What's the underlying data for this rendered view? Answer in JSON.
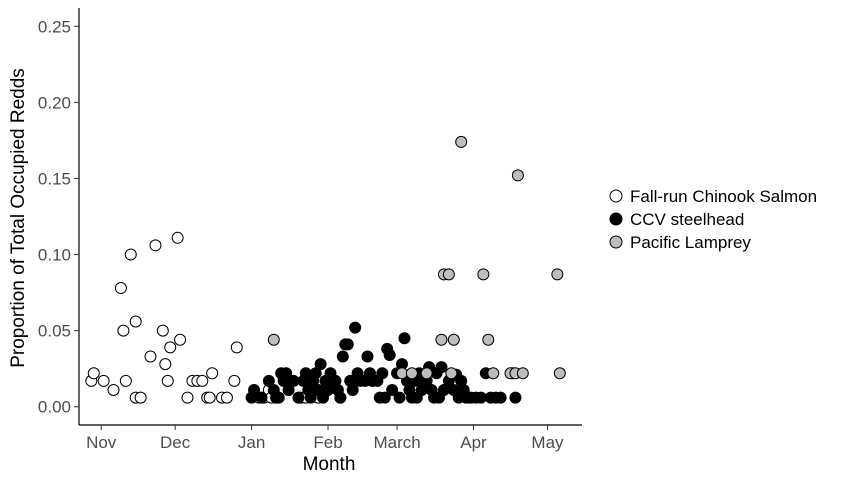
{
  "chart_data": {
    "type": "scatter",
    "title": "",
    "xlabel": "Month",
    "ylabel": "Proportion of Total Occupied Redds",
    "x_ticks": [
      "Nov",
      "Dec",
      "Jan",
      "Feb",
      "March",
      "Apr",
      "May"
    ],
    "x_tick_days": [
      0,
      30,
      61,
      92,
      120,
      151,
      181
    ],
    "xlim_days": [
      -9,
      195
    ],
    "x_note_days": "x values are days since Nov 1",
    "y_ticks": [
      "0.00",
      "0.05",
      "0.10",
      "0.15",
      "0.20",
      "0.25"
    ],
    "ylim": [
      -0.012,
      0.262
    ],
    "grid": false,
    "legend_position": "right",
    "series": [
      {
        "name": "Fall-run Chinook Salmon",
        "fill": "#ffffff",
        "stroke": "#000000",
        "points": [
          [
            -4,
            0.017
          ],
          [
            -3,
            0.022
          ],
          [
            1,
            0.017
          ],
          [
            5,
            0.011
          ],
          [
            8,
            0.078
          ],
          [
            9,
            0.05
          ],
          [
            10,
            0.017
          ],
          [
            12,
            0.1
          ],
          [
            14,
            0.056
          ],
          [
            14,
            0.006
          ],
          [
            16,
            0.006
          ],
          [
            20,
            0.033
          ],
          [
            22,
            0.106
          ],
          [
            25,
            0.05
          ],
          [
            26,
            0.028
          ],
          [
            27,
            0.017
          ],
          [
            28,
            0.039
          ],
          [
            31,
            0.111
          ],
          [
            32,
            0.044
          ],
          [
            35,
            0.006
          ],
          [
            37,
            0.017
          ],
          [
            39,
            0.017
          ],
          [
            41,
            0.017
          ],
          [
            43,
            0.006
          ],
          [
            44,
            0.006
          ],
          [
            45,
            0.022
          ],
          [
            49,
            0.006
          ],
          [
            51,
            0.006
          ],
          [
            54,
            0.017
          ],
          [
            55,
            0.039
          ],
          [
            64,
            0.006
          ],
          [
            66,
            0.006
          ],
          [
            68,
            0.011
          ],
          [
            69,
            0.006
          ],
          [
            71,
            0.006
          ],
          [
            81,
            0.006
          ],
          [
            83,
            0.006
          ],
          [
            85,
            0.011
          ],
          [
            88,
            0.006
          ],
          [
            93,
            0.017
          ],
          [
            97,
            0.006
          ]
        ]
      },
      {
        "name": "CCV steelhead",
        "fill": "#000000",
        "stroke": "#000000",
        "points": [
          [
            61,
            0.006
          ],
          [
            62,
            0.011
          ],
          [
            65,
            0.006
          ],
          [
            68,
            0.017
          ],
          [
            70,
            0.011
          ],
          [
            71,
            0.006
          ],
          [
            72,
            0.006
          ],
          [
            73,
            0.022
          ],
          [
            74,
            0.017
          ],
          [
            75,
            0.022
          ],
          [
            76,
            0.011
          ],
          [
            78,
            0.017
          ],
          [
            80,
            0.006
          ],
          [
            82,
            0.017
          ],
          [
            83,
            0.022
          ],
          [
            84,
            0.011
          ],
          [
            85,
            0.006
          ],
          [
            86,
            0.017
          ],
          [
            87,
            0.022
          ],
          [
            88,
            0.011
          ],
          [
            89,
            0.028
          ],
          [
            90,
            0.006
          ],
          [
            91,
            0.017
          ],
          [
            92,
            0.011
          ],
          [
            93,
            0.022
          ],
          [
            95,
            0.017
          ],
          [
            96,
            0.011
          ],
          [
            97,
            0.006
          ],
          [
            98,
            0.033
          ],
          [
            99,
            0.041
          ],
          [
            100,
            0.041
          ],
          [
            101,
            0.017
          ],
          [
            102,
            0.011
          ],
          [
            103,
            0.052
          ],
          [
            104,
            0.022
          ],
          [
            105,
            0.017
          ],
          [
            107,
            0.017
          ],
          [
            108,
            0.033
          ],
          [
            109,
            0.022
          ],
          [
            110,
            0.017
          ],
          [
            112,
            0.017
          ],
          [
            113,
            0.006
          ],
          [
            114,
            0.022
          ],
          [
            115,
            0.006
          ],
          [
            116,
            0.038
          ],
          [
            117,
            0.034
          ],
          [
            118,
            0.011
          ],
          [
            120,
            0.022
          ],
          [
            121,
            0.006
          ],
          [
            122,
            0.028
          ],
          [
            123,
            0.045
          ],
          [
            124,
            0.017
          ],
          [
            125,
            0.011
          ],
          [
            126,
            0.006
          ],
          [
            127,
            0.017
          ],
          [
            128,
            0.006
          ],
          [
            129,
            0.022
          ],
          [
            130,
            0.011
          ],
          [
            131,
            0.017
          ],
          [
            132,
            0.017
          ],
          [
            133,
            0.026
          ],
          [
            134,
            0.011
          ],
          [
            135,
            0.006
          ],
          [
            136,
            0.022
          ],
          [
            137,
            0.006
          ],
          [
            138,
            0.026
          ],
          [
            139,
            0.011
          ],
          [
            141,
            0.017
          ],
          [
            143,
            0.011
          ],
          [
            144,
            0.021
          ],
          [
            145,
            0.006
          ],
          [
            146,
            0.017
          ],
          [
            147,
            0.011
          ],
          [
            148,
            0.006
          ],
          [
            149,
            0.006
          ],
          [
            150,
            0.006
          ],
          [
            152,
            0.006
          ],
          [
            154,
            0.006
          ],
          [
            156,
            0.022
          ],
          [
            158,
            0.006
          ],
          [
            160,
            0.006
          ],
          [
            162,
            0.006
          ],
          [
            167,
            0.022
          ],
          [
            168,
            0.006
          ]
        ]
      },
      {
        "name": "Pacific Lamprey",
        "fill": "#bdbdbd",
        "stroke": "#000000",
        "points": [
          [
            70,
            0.044
          ],
          [
            122,
            0.022
          ],
          [
            126,
            0.022
          ],
          [
            132,
            0.022
          ],
          [
            138,
            0.044
          ],
          [
            139,
            0.087
          ],
          [
            141,
            0.087
          ],
          [
            142,
            0.022
          ],
          [
            143,
            0.044
          ],
          [
            146,
            0.174
          ],
          [
            155,
            0.087
          ],
          [
            157,
            0.044
          ],
          [
            159,
            0.022
          ],
          [
            166,
            0.022
          ],
          [
            168,
            0.022
          ],
          [
            169,
            0.152
          ],
          [
            171,
            0.022
          ],
          [
            185,
            0.087
          ],
          [
            186,
            0.022
          ]
        ]
      }
    ]
  }
}
